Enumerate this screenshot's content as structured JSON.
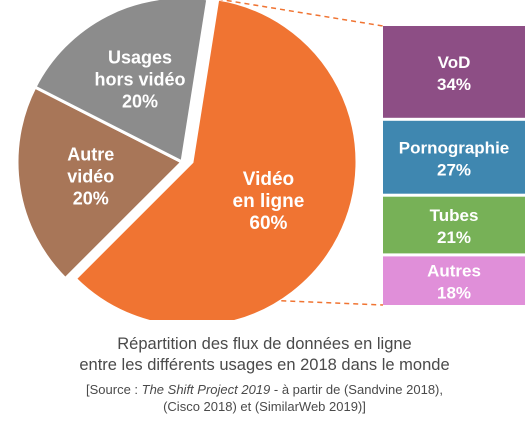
{
  "chart_data": {
    "type": "pie",
    "slices": [
      {
        "label_lines": [
          "Vidéo",
          "en ligne",
          "60%"
        ],
        "value": 60,
        "color": "#f07432"
      },
      {
        "label_lines": [
          "Autre",
          "vidéo",
          "20%"
        ],
        "value": 20,
        "color": "#a87658"
      },
      {
        "label_lines": [
          "Usages",
          "hors vidéo",
          "20%"
        ],
        "value": 20,
        "color": "#8c8c8c"
      }
    ],
    "breakdown": {
      "of_slice": "Vidéo en ligne",
      "segments": [
        {
          "name": "VoD",
          "percent": "34%",
          "value": 34,
          "color": "#8d4e85"
        },
        {
          "name": "Pornographie",
          "percent": "27%",
          "value": 27,
          "color": "#3f87b0"
        },
        {
          "name": "Tubes",
          "percent": "21%",
          "value": 21,
          "color": "#77b157"
        },
        {
          "name": "Autres",
          "percent": "18%",
          "value": 18,
          "color": "#e08fd9"
        }
      ]
    },
    "label_color": "#ffffff",
    "connector_color": "#f07432"
  },
  "caption": {
    "line1": "Répartition des flux de données en ligne",
    "line2": "entre les différents usages en 2018 dans le monde"
  },
  "source": {
    "prefix": "[Source : ",
    "italic": "The Shift Project 2019",
    "suffix": " - à partir de (Sandvine 2018),",
    "line2": "(Cisco 2018) et (SimilarWeb 2019)]"
  }
}
